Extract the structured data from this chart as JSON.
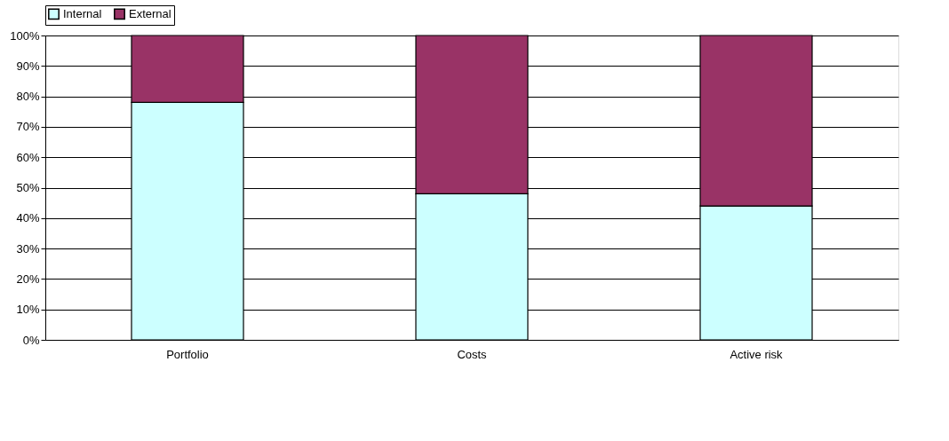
{
  "chart_data": {
    "type": "bar",
    "stacked": true,
    "categories": [
      "Portfolio",
      "Costs",
      "Active risk"
    ],
    "series": [
      {
        "name": "Internal",
        "color": "#ccffff",
        "values": [
          78,
          48,
          44
        ]
      },
      {
        "name": "External",
        "color": "#993366",
        "values": [
          22,
          52,
          56
        ]
      }
    ],
    "ylim": [
      0,
      100
    ],
    "yticks": [
      {
        "value": 0,
        "label": "0%"
      },
      {
        "value": 10,
        "label": "10%"
      },
      {
        "value": 20,
        "label": "20%"
      },
      {
        "value": 30,
        "label": "30%"
      },
      {
        "value": 40,
        "label": "40%"
      },
      {
        "value": 50,
        "label": "50%"
      },
      {
        "value": 60,
        "label": "60%"
      },
      {
        "value": 70,
        "label": "70%"
      },
      {
        "value": 80,
        "label": "80%"
      },
      {
        "value": 90,
        "label": "90%"
      },
      {
        "value": 100,
        "label": "100%"
      }
    ],
    "grid": "y",
    "legend": "top"
  }
}
